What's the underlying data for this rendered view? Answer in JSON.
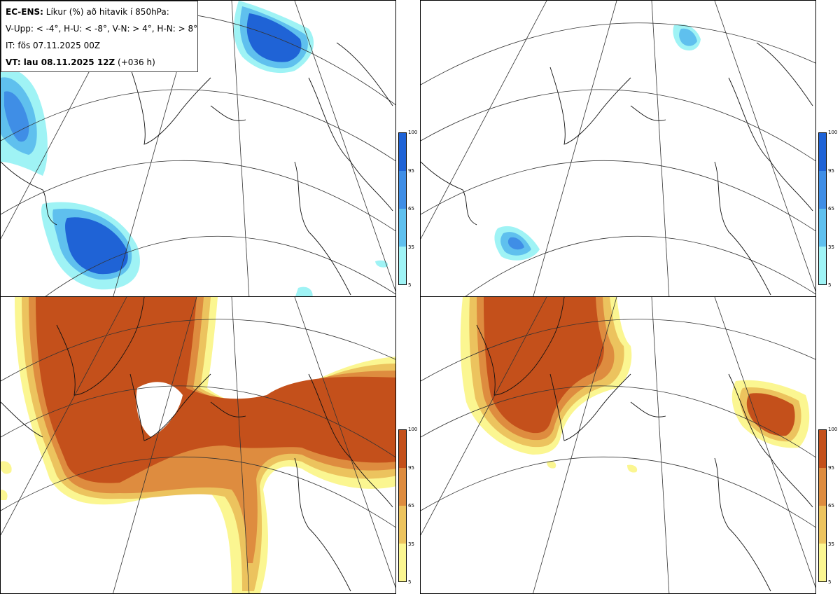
{
  "header": {
    "product": "EC-ENS:",
    "description": "Líkur (%) að hitavik í 850hPa:",
    "legend_line": "V-Upp: < -4°, H-U: < -8°, V-N: > 4°, H-N: > 8°",
    "issue_time": "IT: fös 07.11.2025 00Z",
    "valid_label": "VT: lau 08.11.2025 12Z",
    "lead": "(+036 h)"
  },
  "colorbar_cold": {
    "ticks": [
      "100",
      "95",
      "65",
      "35",
      "5"
    ],
    "colors": [
      "#1f63d6",
      "#3f8ee6",
      "#5fc0ee",
      "#9ff3f5"
    ]
  },
  "colorbar_warm": {
    "ticks": [
      "100",
      "95",
      "65",
      "35",
      "5"
    ],
    "colors": [
      "#c4501b",
      "#de8c3f",
      "#ecc35e",
      "#fbf691"
    ]
  },
  "panels": [
    {
      "id": "V-Upp",
      "threshold": "< -4°"
    },
    {
      "id": "H-U",
      "threshold": "< -8°"
    },
    {
      "id": "V-N",
      "threshold": "> 4°"
    },
    {
      "id": "H-N",
      "threshold": "> 8°"
    }
  ]
}
